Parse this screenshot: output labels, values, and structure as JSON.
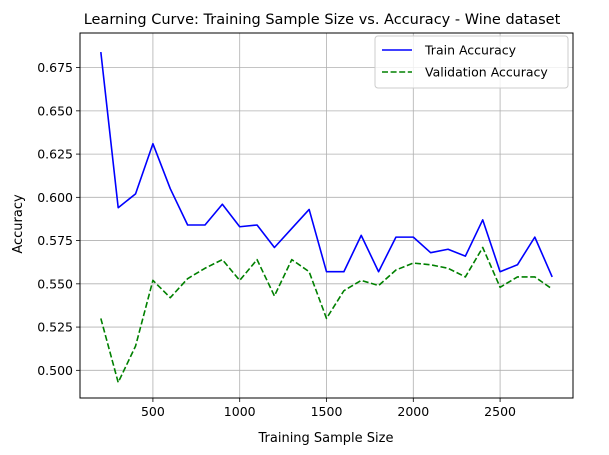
{
  "chart_data": {
    "type": "line",
    "title": "Learning Curve: Training Sample Size vs. Accuracy - Wine dataset",
    "xlabel": "Training Sample Size",
    "ylabel": "Accuracy",
    "xlim": [
      80,
      2920
    ],
    "ylim": [
      0.484,
      0.695
    ],
    "xticks": [
      500,
      1000,
      1500,
      2000,
      2500
    ],
    "xtick_labels": [
      "500",
      "1000",
      "1500",
      "2000",
      "2500"
    ],
    "yticks": [
      0.5,
      0.525,
      0.55,
      0.575,
      0.6,
      0.625,
      0.65,
      0.675
    ],
    "ytick_labels": [
      "0.500",
      "0.525",
      "0.550",
      "0.575",
      "0.600",
      "0.625",
      "0.650",
      "0.675"
    ],
    "grid": true,
    "legend_position": "top-right",
    "x": [
      200,
      300,
      400,
      500,
      600,
      700,
      800,
      900,
      1000,
      1100,
      1200,
      1300,
      1400,
      1500,
      1600,
      1700,
      1800,
      1900,
      2000,
      2100,
      2200,
      2300,
      2400,
      2500,
      2600,
      2700,
      2800
    ],
    "series": [
      {
        "name": "Train Accuracy",
        "color": "#0000ff",
        "linestyle": "solid",
        "values": [
          0.684,
          0.594,
          0.602,
          0.631,
          0.605,
          0.584,
          0.584,
          0.596,
          0.583,
          0.584,
          0.571,
          0.582,
          0.593,
          0.557,
          0.557,
          0.578,
          0.557,
          0.577,
          0.577,
          0.568,
          0.57,
          0.566,
          0.587,
          0.557,
          0.561,
          0.577,
          0.554
        ]
      },
      {
        "name": "Validation Accuracy",
        "color": "#008000",
        "linestyle": "dashed",
        "values": [
          0.53,
          0.493,
          0.514,
          0.552,
          0.542,
          0.553,
          0.559,
          0.564,
          0.552,
          0.564,
          0.543,
          0.564,
          0.557,
          0.53,
          0.546,
          0.552,
          0.549,
          0.558,
          0.562,
          0.561,
          0.559,
          0.554,
          0.571,
          0.548,
          0.554,
          0.554,
          0.547
        ]
      }
    ]
  }
}
